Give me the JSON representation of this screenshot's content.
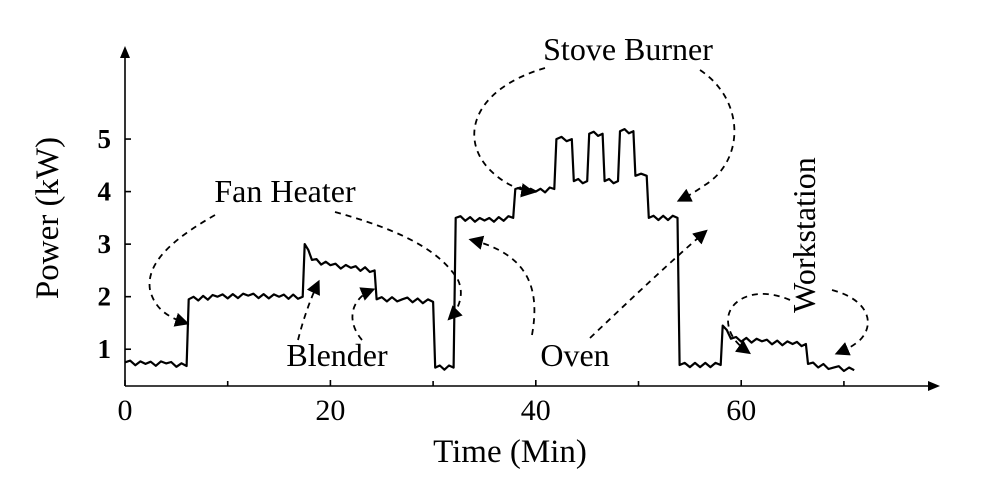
{
  "chart_data": {
    "type": "line",
    "xlabel": "Time (Min)",
    "ylabel": "Power (kW)",
    "xlim": [
      0,
      74
    ],
    "ylim": [
      0.3,
      6.2
    ],
    "x_ticks": [
      0,
      20,
      40,
      60
    ],
    "y_ticks": [
      1,
      2,
      3,
      4,
      5
    ],
    "grid": false,
    "series": [
      {
        "points": [
          [
            0,
            0.75
          ],
          [
            2,
            0.72
          ],
          [
            4,
            0.73
          ],
          [
            6,
            0.68
          ],
          [
            6.2,
            1.95
          ],
          [
            9,
            2.0
          ],
          [
            12,
            2.02
          ],
          [
            15,
            2.0
          ],
          [
            17.3,
            2.0
          ],
          [
            17.5,
            3.0
          ],
          [
            18.2,
            2.7
          ],
          [
            20,
            2.6
          ],
          [
            22,
            2.55
          ],
          [
            24.3,
            2.5
          ],
          [
            24.5,
            1.95
          ],
          [
            27,
            1.95
          ],
          [
            30,
            1.9
          ],
          [
            30.2,
            0.65
          ],
          [
            32,
            0.65
          ],
          [
            32.2,
            3.5
          ],
          [
            35,
            3.45
          ],
          [
            37.8,
            3.5
          ],
          [
            38,
            4.05
          ],
          [
            40,
            4.0
          ],
          [
            41.8,
            4.05
          ],
          [
            42,
            5.0
          ],
          [
            43.5,
            5.0
          ],
          [
            43.7,
            4.2
          ],
          [
            45,
            4.2
          ],
          [
            45.2,
            5.1
          ],
          [
            46.5,
            5.1
          ],
          [
            46.7,
            4.2
          ],
          [
            48,
            4.2
          ],
          [
            48.2,
            5.15
          ],
          [
            49.5,
            5.15
          ],
          [
            49.7,
            4.3
          ],
          [
            50.8,
            4.3
          ],
          [
            51,
            3.5
          ],
          [
            53.8,
            3.5
          ],
          [
            54,
            0.7
          ],
          [
            58,
            0.7
          ],
          [
            58.2,
            1.45
          ],
          [
            59,
            1.2
          ],
          [
            62,
            1.15
          ],
          [
            65,
            1.1
          ],
          [
            66.3,
            1.1
          ],
          [
            66.5,
            0.72
          ],
          [
            69,
            0.65
          ],
          [
            71,
            0.6
          ]
        ]
      }
    ],
    "annotations": [
      {
        "label": "Stove Burner"
      },
      {
        "label": "Fan Heater"
      },
      {
        "label": "Blender"
      },
      {
        "label": "Oven"
      },
      {
        "label": "Workstation"
      }
    ]
  }
}
